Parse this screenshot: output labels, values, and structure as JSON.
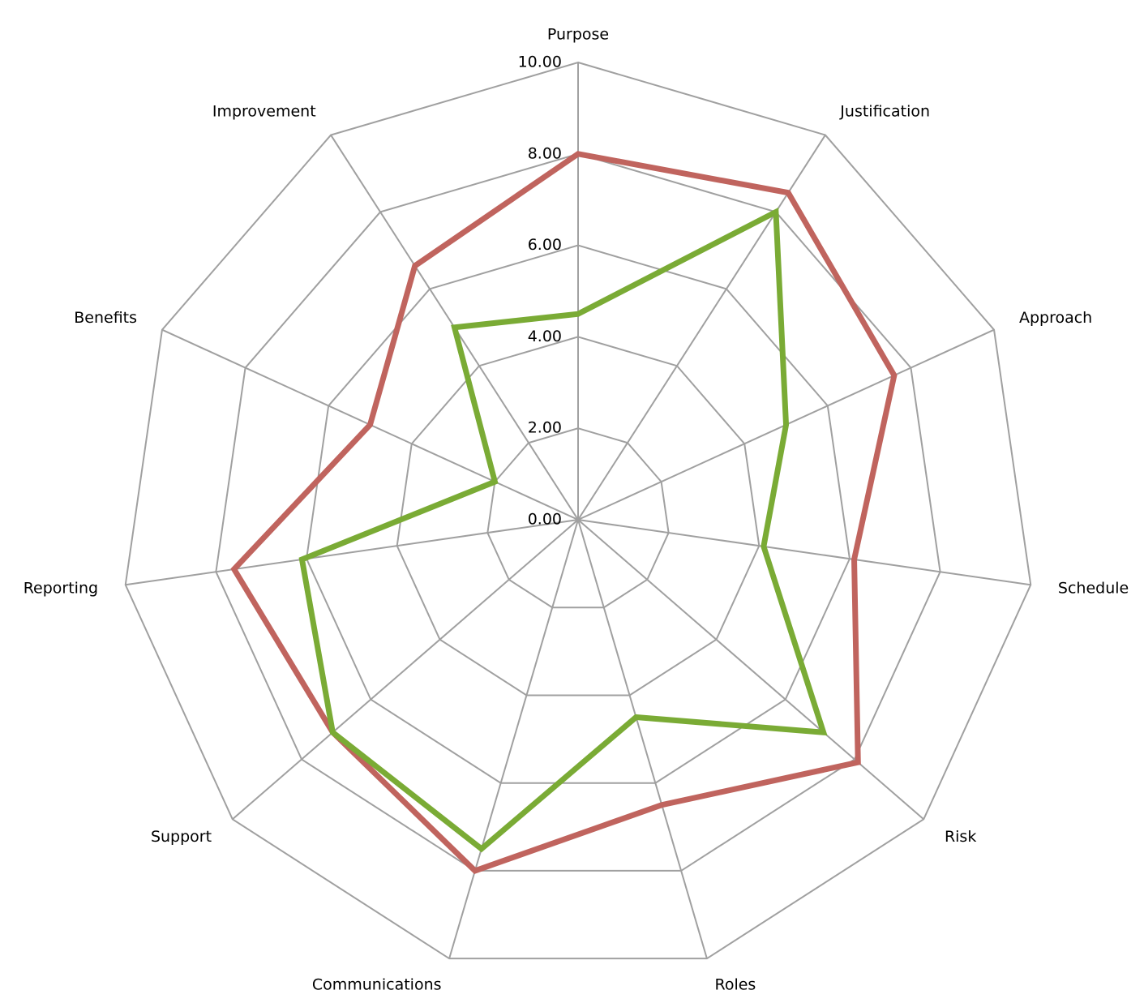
{
  "chart_data": {
    "type": "radar",
    "categories": [
      "Purpose",
      "Justification",
      "Approach",
      "Schedule",
      "Risk",
      "Roles",
      "Communications",
      "Support",
      "Reporting",
      "Benefits",
      "Improvement"
    ],
    "series": [
      {
        "color": "#c0645e",
        "values": [
          8.0,
          8.5,
          7.6,
          6.1,
          8.1,
          6.5,
          8.0,
          7.1,
          7.6,
          5.0,
          6.6
        ]
      },
      {
        "color": "#7aab35",
        "values": [
          4.5,
          8.0,
          5.0,
          4.1,
          7.1,
          4.5,
          7.5,
          7.1,
          6.1,
          2.0,
          5.0
        ]
      }
    ],
    "ylim": [
      0,
      10
    ],
    "yticks": [
      {
        "value": 0,
        "label": "0.00"
      },
      {
        "value": 2,
        "label": "2.00"
      },
      {
        "value": 4,
        "label": "4.00"
      },
      {
        "value": 6,
        "label": "6.00"
      },
      {
        "value": 8,
        "label": "8.00"
      },
      {
        "value": 10,
        "label": "10.00"
      }
    ],
    "grid": true
  }
}
